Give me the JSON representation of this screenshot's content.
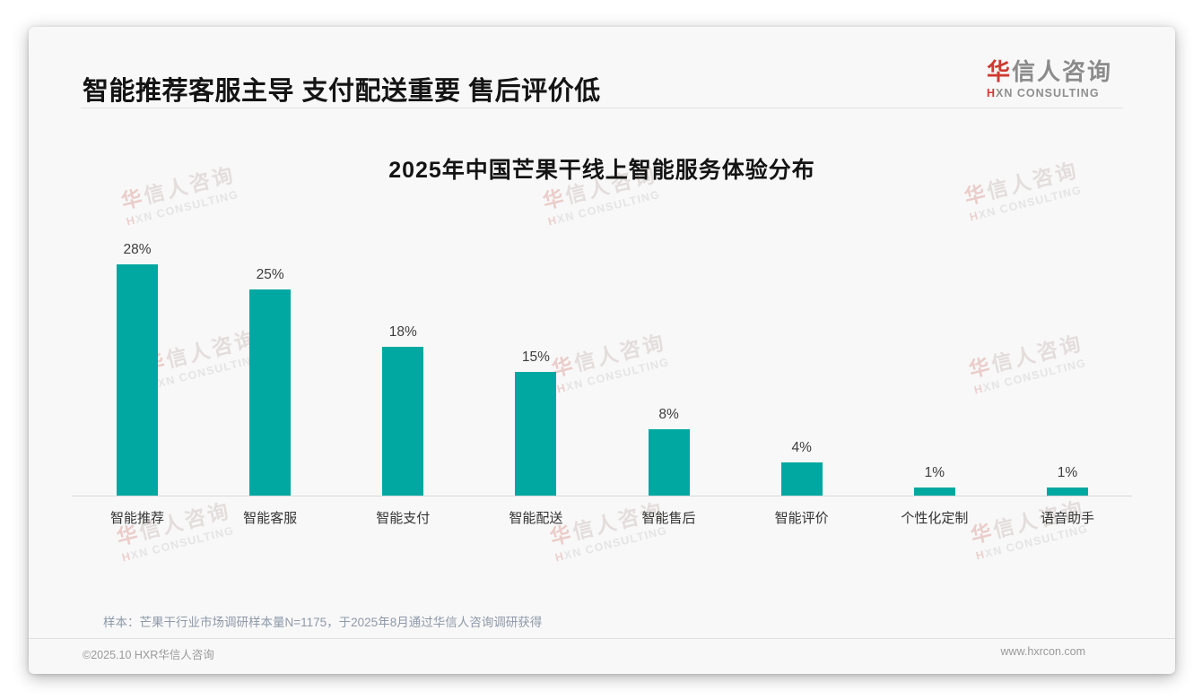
{
  "header": {
    "title": "智能推荐客服主导 支付配送重要 售后评价低"
  },
  "logo": {
    "cn_first": "华",
    "cn_rest": "信人咨询",
    "en_first": "H",
    "en_rest": "XN CONSULTING"
  },
  "watermark": {
    "cn_first": "华",
    "cn_rest": "信人咨询",
    "en_first": "H",
    "en_rest": "XN CONSULTING"
  },
  "chart_data": {
    "type": "bar",
    "title": "2025年中国芒果干线上智能服务体验分布",
    "categories": [
      "智能推荐",
      "智能客服",
      "智能支付",
      "智能配送",
      "智能售后",
      "智能评价",
      "个性化定制",
      "语音助手"
    ],
    "values": [
      28,
      25,
      18,
      15,
      8,
      4,
      1,
      1
    ],
    "unit": "%",
    "bar_color": "#00a8a1",
    "ylim": [
      0,
      30
    ],
    "grid": false,
    "value_labels": true,
    "legend": "none"
  },
  "footnote": "样本：芒果干行业市场调研样本量N=1175，于2025年8月通过华信人咨询调研获得",
  "footer": {
    "left": "©2025.10 HXR华信人咨询",
    "right": "www.hxrcon.com"
  }
}
